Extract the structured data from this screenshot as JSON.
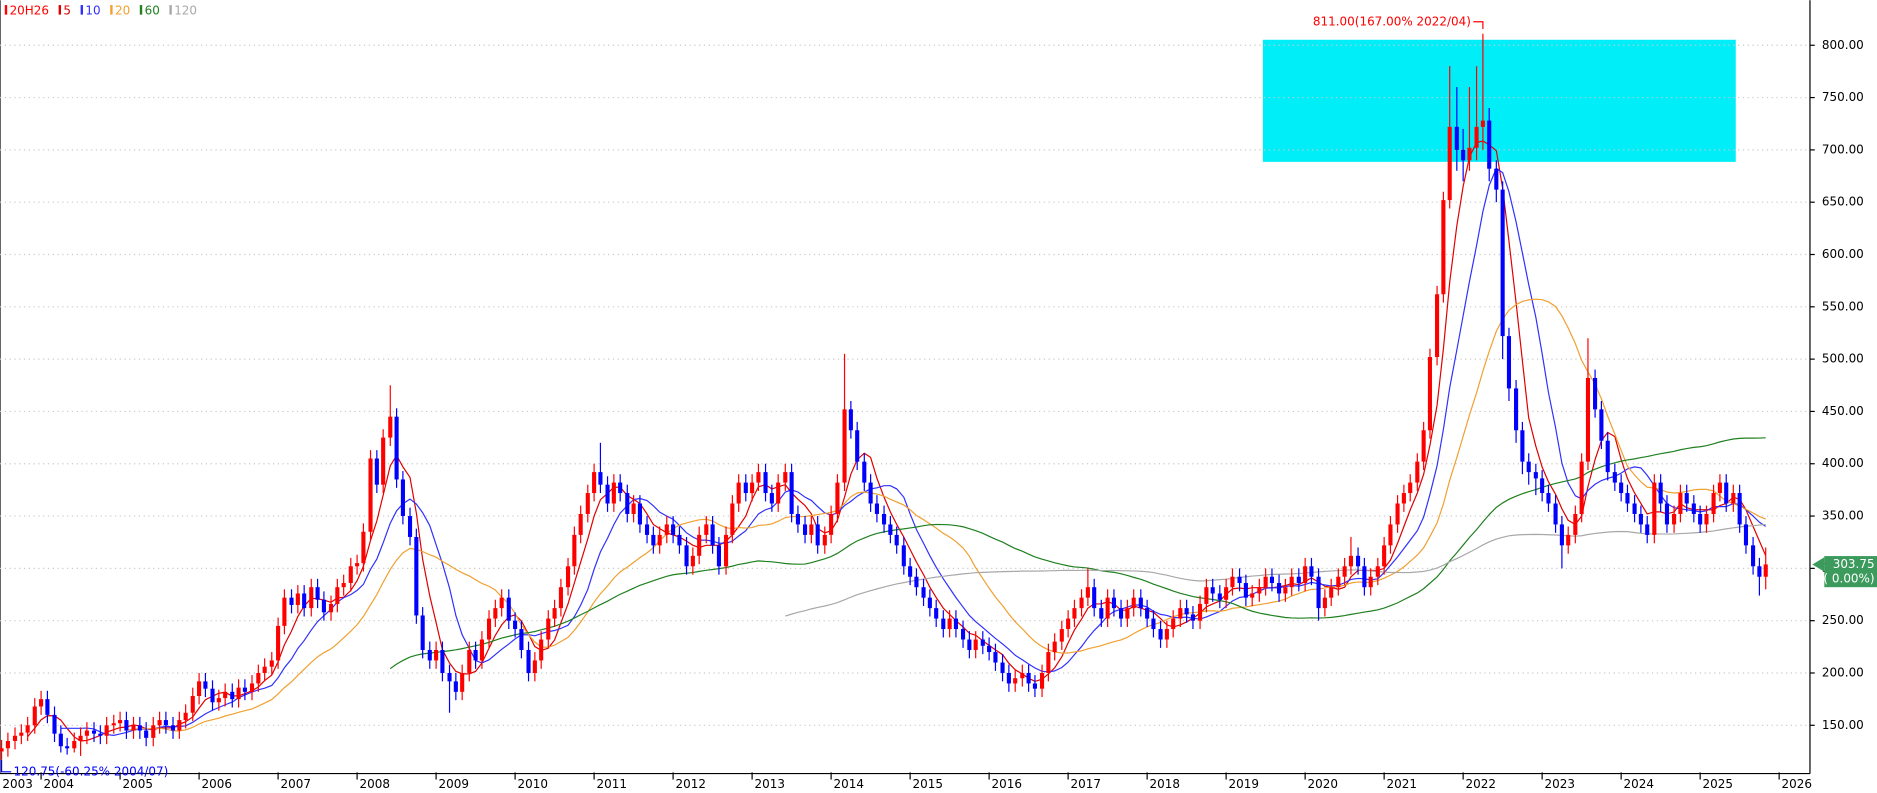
{
  "chart_data": {
    "type": "candlestick",
    "legend_title": "20H26",
    "x": [
      2003.5,
      2003.58,
      2003.67,
      2003.75,
      2003.83,
      2003.92,
      2004,
      2004.08,
      2004.17,
      2004.25,
      2004.33,
      2004.42,
      2004.5,
      2004.58,
      2004.67,
      2004.75,
      2004.83,
      2004.92,
      2005,
      2005.08,
      2005.17,
      2005.25,
      2005.33,
      2005.42,
      2005.5,
      2005.58,
      2005.67,
      2005.75,
      2005.83,
      2005.92,
      2006,
      2006.08,
      2006.17,
      2006.25,
      2006.33,
      2006.42,
      2006.5,
      2006.58,
      2006.67,
      2006.75,
      2006.83,
      2006.92,
      2007,
      2007.08,
      2007.17,
      2007.25,
      2007.33,
      2007.42,
      2007.5,
      2007.58,
      2007.67,
      2007.75,
      2007.83,
      2007.92,
      2008,
      2008.08,
      2008.17,
      2008.25,
      2008.33,
      2008.42,
      2008.5,
      2008.58,
      2008.67,
      2008.75,
      2008.83,
      2008.92,
      2009,
      2009.08,
      2009.17,
      2009.25,
      2009.33,
      2009.42,
      2009.5,
      2009.58,
      2009.67,
      2009.75,
      2009.83,
      2009.92,
      2010,
      2010.08,
      2010.17,
      2010.25,
      2010.33,
      2010.42,
      2010.5,
      2010.58,
      2010.67,
      2010.75,
      2010.83,
      2010.92,
      2011,
      2011.08,
      2011.17,
      2011.25,
      2011.33,
      2011.42,
      2011.5,
      2011.58,
      2011.67,
      2011.75,
      2011.83,
      2011.92,
      2012,
      2012.08,
      2012.17,
      2012.25,
      2012.33,
      2012.42,
      2012.5,
      2012.58,
      2012.67,
      2012.75,
      2012.83,
      2012.92,
      2013,
      2013.08,
      2013.17,
      2013.25,
      2013.33,
      2013.42,
      2013.5,
      2013.58,
      2013.67,
      2013.75,
      2013.83,
      2013.92,
      2014,
      2014.08,
      2014.17,
      2014.25,
      2014.33,
      2014.42,
      2014.5,
      2014.58,
      2014.67,
      2014.75,
      2014.83,
      2014.92,
      2015,
      2015.08,
      2015.17,
      2015.25,
      2015.33,
      2015.42,
      2015.5,
      2015.58,
      2015.67,
      2015.75,
      2015.83,
      2015.92,
      2016,
      2016.08,
      2016.17,
      2016.25,
      2016.33,
      2016.42,
      2016.5,
      2016.58,
      2016.67,
      2016.75,
      2016.83,
      2016.92,
      2017,
      2017.08,
      2017.17,
      2017.25,
      2017.33,
      2017.42,
      2017.5,
      2017.58,
      2017.67,
      2017.75,
      2017.83,
      2017.92,
      2018,
      2018.08,
      2018.17,
      2018.25,
      2018.33,
      2018.42,
      2018.5,
      2018.58,
      2018.67,
      2018.75,
      2018.83,
      2018.92,
      2019,
      2019.08,
      2019.17,
      2019.25,
      2019.33,
      2019.42,
      2019.5,
      2019.58,
      2019.67,
      2019.75,
      2019.83,
      2019.92,
      2020,
      2020.08,
      2020.17,
      2020.25,
      2020.33,
      2020.42,
      2020.5,
      2020.58,
      2020.67,
      2020.75,
      2020.83,
      2020.92,
      2021,
      2021.08,
      2021.17,
      2021.25,
      2021.33,
      2021.42,
      2021.5,
      2021.58,
      2021.67,
      2021.75,
      2021.83,
      2021.92,
      2022,
      2022.08,
      2022.17,
      2022.25,
      2022.33,
      2022.42,
      2022.5,
      2022.58,
      2022.67,
      2022.75,
      2022.83,
      2022.92,
      2023,
      2023.08,
      2023.17,
      2023.25,
      2023.33,
      2023.42,
      2023.5,
      2023.58,
      2023.67,
      2023.75,
      2023.83,
      2023.92,
      2024,
      2024.08,
      2024.17,
      2024.25,
      2024.33,
      2024.42,
      2024.5,
      2024.58,
      2024.67,
      2024.75,
      2024.83,
      2024.92,
      2025,
      2025.08,
      2025.17,
      2025.25,
      2025.33,
      2025.42,
      2025.5,
      2025.58,
      2025.67,
      2025.75,
      2025.83
    ],
    "open": [
      125,
      128,
      135,
      140,
      143,
      150,
      168,
      175,
      160,
      142,
      130,
      128,
      135,
      140,
      145,
      142,
      140,
      150,
      152,
      155,
      145,
      150,
      145,
      138,
      150,
      155,
      150,
      145,
      155,
      162,
      178,
      192,
      185,
      172,
      176,
      182,
      175,
      186,
      182,
      190,
      200,
      206,
      212,
      245,
      272,
      265,
      276,
      262,
      282,
      270,
      258,
      266,
      282,
      286,
      302,
      305,
      335,
      405,
      380,
      425,
      445,
      385,
      350,
      330,
      255,
      222,
      212,
      222,
      200,
      192,
      182,
      200,
      222,
      212,
      232,
      252,
      262,
      272,
      250,
      242,
      222,
      200,
      212,
      232,
      252,
      262,
      282,
      302,
      332,
      352,
      372,
      392,
      380,
      362,
      382,
      372,
      352,
      362,
      342,
      332,
      322,
      332,
      342,
      332,
      322,
      302,
      312,
      332,
      342,
      322,
      302,
      332,
      362,
      382,
      372,
      382,
      392,
      372,
      362,
      382,
      392,
      352,
      342,
      332,
      342,
      322,
      332,
      352,
      382,
      452,
      432,
      402,
      382,
      362,
      352,
      342,
      332,
      322,
      302,
      292,
      282,
      272,
      262,
      252,
      242,
      252,
      242,
      232,
      222,
      232,
      226,
      220,
      210,
      200,
      190,
      195,
      200,
      190,
      185,
      200,
      220,
      230,
      242,
      252,
      262,
      272,
      282,
      262,
      252,
      272,
      262,
      252,
      262,
      272,
      262,
      252,
      242,
      232,
      242,
      252,
      262,
      256,
      250,
      266,
      282,
      276,
      270,
      282,
      292,
      286,
      272,
      276,
      282,
      292,
      286,
      276,
      282,
      292,
      286,
      302,
      292,
      262,
      272,
      282,
      292,
      302,
      312,
      302,
      282,
      292,
      302,
      322,
      342,
      362,
      372,
      382,
      402,
      432,
      502,
      562,
      652,
      722,
      700,
      690,
      702,
      722,
      728,
      682,
      662,
      522,
      472,
      432,
      402,
      392,
      386,
      372,
      362,
      342,
      322,
      332,
      352,
      402,
      482,
      452,
      422,
      392,
      382,
      372,
      362,
      352,
      342,
      332,
      382,
      362,
      342,
      352,
      372,
      362,
      352,
      342,
      352,
      372,
      382,
      362,
      372,
      342,
      322,
      302,
      292
    ],
    "high": [
      136,
      143,
      148,
      151,
      158,
      176,
      183,
      183,
      168,
      150,
      138,
      143,
      148,
      153,
      153,
      150,
      158,
      160,
      163,
      163,
      158,
      158,
      153,
      158,
      163,
      163,
      158,
      163,
      170,
      186,
      200,
      200,
      193,
      184,
      190,
      190,
      194,
      194,
      198,
      208,
      214,
      220,
      253,
      280,
      280,
      284,
      284,
      290,
      290,
      278,
      274,
      290,
      294,
      310,
      313,
      343,
      413,
      413,
      433,
      475,
      453,
      393,
      358,
      338,
      263,
      230,
      230,
      230,
      208,
      200,
      208,
      230,
      230,
      240,
      260,
      270,
      280,
      280,
      258,
      250,
      230,
      220,
      240,
      260,
      270,
      290,
      310,
      340,
      360,
      380,
      400,
      420,
      388,
      390,
      390,
      380,
      370,
      370,
      350,
      340,
      340,
      350,
      350,
      340,
      330,
      320,
      340,
      350,
      350,
      330,
      340,
      370,
      390,
      390,
      390,
      400,
      400,
      380,
      390,
      400,
      400,
      360,
      350,
      350,
      350,
      340,
      360,
      390,
      505,
      460,
      440,
      410,
      390,
      370,
      360,
      350,
      340,
      330,
      310,
      300,
      290,
      280,
      270,
      260,
      260,
      260,
      250,
      240,
      240,
      240,
      234,
      228,
      218,
      208,
      203,
      208,
      208,
      198,
      208,
      228,
      238,
      250,
      260,
      270,
      280,
      300,
      290,
      270,
      280,
      280,
      270,
      270,
      280,
      280,
      270,
      260,
      250,
      250,
      260,
      270,
      270,
      264,
      274,
      290,
      290,
      284,
      290,
      300,
      300,
      294,
      284,
      290,
      300,
      300,
      294,
      290,
      300,
      300,
      310,
      310,
      300,
      280,
      290,
      300,
      310,
      330,
      320,
      310,
      300,
      310,
      330,
      350,
      370,
      380,
      390,
      410,
      440,
      510,
      570,
      660,
      780,
      760,
      720,
      760,
      780,
      811,
      740,
      690,
      670,
      530,
      480,
      440,
      410,
      400,
      394,
      380,
      370,
      350,
      340,
      360,
      410,
      520,
      490,
      460,
      430,
      400,
      390,
      380,
      370,
      360,
      350,
      390,
      390,
      370,
      360,
      380,
      380,
      370,
      360,
      360,
      380,
      390,
      390,
      380,
      380,
      350,
      330,
      310,
      320
    ],
    "low": [
      117,
      120,
      127,
      132,
      135,
      142,
      160,
      152,
      134,
      124,
      122,
      124,
      120.75,
      132,
      134,
      132,
      132,
      142,
      144,
      137,
      137,
      137,
      130,
      130,
      142,
      142,
      137,
      137,
      147,
      154,
      170,
      177,
      164,
      164,
      168,
      167,
      167,
      174,
      174,
      182,
      192,
      198,
      204,
      237,
      257,
      257,
      254,
      254,
      262,
      250,
      250,
      258,
      274,
      278,
      294,
      297,
      327,
      372,
      372,
      417,
      377,
      342,
      322,
      247,
      214,
      204,
      204,
      192,
      162,
      174,
      174,
      192,
      204,
      204,
      224,
      244,
      254,
      242,
      234,
      214,
      192,
      192,
      204,
      224,
      244,
      254,
      274,
      294,
      324,
      344,
      364,
      372,
      354,
      354,
      364,
      344,
      344,
      334,
      324,
      314,
      314,
      324,
      324,
      314,
      294,
      294,
      304,
      324,
      314,
      294,
      294,
      324,
      354,
      364,
      364,
      374,
      364,
      354,
      354,
      374,
      344,
      334,
      324,
      324,
      314,
      314,
      324,
      344,
      374,
      424,
      394,
      374,
      354,
      344,
      334,
      324,
      314,
      294,
      284,
      274,
      264,
      254,
      244,
      234,
      234,
      234,
      224,
      214,
      214,
      218,
      212,
      202,
      192,
      182,
      182,
      187,
      182,
      177,
      177,
      192,
      212,
      222,
      234,
      244,
      254,
      264,
      254,
      244,
      244,
      254,
      244,
      244,
      254,
      254,
      244,
      234,
      224,
      224,
      234,
      244,
      248,
      242,
      242,
      258,
      268,
      262,
      262,
      274,
      278,
      264,
      264,
      268,
      274,
      278,
      268,
      268,
      274,
      278,
      278,
      284,
      250,
      254,
      264,
      274,
      284,
      294,
      294,
      274,
      274,
      284,
      294,
      314,
      334,
      354,
      364,
      374,
      394,
      424,
      494,
      554,
      644,
      680,
      670,
      680,
      690,
      700,
      670,
      650,
      500,
      460,
      420,
      390,
      380,
      370,
      364,
      354,
      334,
      300,
      314,
      324,
      344,
      394,
      444,
      414,
      384,
      374,
      364,
      354,
      344,
      334,
      324,
      324,
      354,
      334,
      334,
      344,
      354,
      344,
      334,
      334,
      344,
      364,
      354,
      354,
      334,
      314,
      294,
      274,
      280
    ],
    "close": [
      128,
      135,
      140,
      143,
      150,
      168,
      175,
      160,
      142,
      130,
      128,
      135,
      140,
      145,
      142,
      140,
      150,
      152,
      155,
      145,
      150,
      145,
      138,
      150,
      155,
      150,
      145,
      155,
      162,
      178,
      192,
      185,
      172,
      176,
      182,
      175,
      186,
      182,
      190,
      200,
      206,
      212,
      245,
      272,
      265,
      276,
      262,
      282,
      270,
      258,
      266,
      282,
      286,
      302,
      305,
      335,
      405,
      380,
      425,
      445,
      385,
      350,
      330,
      255,
      222,
      212,
      222,
      200,
      192,
      182,
      200,
      222,
      212,
      232,
      252,
      262,
      272,
      250,
      242,
      222,
      200,
      212,
      232,
      252,
      262,
      282,
      302,
      332,
      352,
      372,
      392,
      380,
      362,
      382,
      372,
      352,
      362,
      342,
      332,
      322,
      332,
      342,
      332,
      322,
      302,
      312,
      332,
      342,
      322,
      302,
      332,
      362,
      382,
      372,
      382,
      392,
      372,
      362,
      382,
      392,
      352,
      342,
      332,
      342,
      322,
      332,
      352,
      382,
      452,
      432,
      402,
      382,
      362,
      352,
      342,
      332,
      322,
      302,
      292,
      282,
      272,
      262,
      252,
      242,
      252,
      242,
      232,
      222,
      232,
      226,
      220,
      210,
      200,
      190,
      195,
      200,
      190,
      185,
      200,
      220,
      230,
      242,
      252,
      262,
      272,
      282,
      262,
      252,
      272,
      262,
      252,
      262,
      272,
      262,
      252,
      242,
      232,
      242,
      252,
      262,
      256,
      250,
      266,
      282,
      276,
      270,
      282,
      292,
      286,
      272,
      276,
      282,
      292,
      286,
      276,
      282,
      292,
      286,
      302,
      292,
      262,
      272,
      282,
      292,
      302,
      312,
      302,
      282,
      292,
      302,
      322,
      342,
      362,
      372,
      382,
      402,
      432,
      502,
      562,
      652,
      722,
      700,
      690,
      702,
      722,
      728,
      682,
      662,
      522,
      472,
      432,
      402,
      392,
      386,
      372,
      362,
      342,
      322,
      332,
      352,
      402,
      482,
      452,
      422,
      392,
      382,
      372,
      362,
      352,
      342,
      332,
      382,
      362,
      342,
      352,
      372,
      362,
      352,
      342,
      352,
      372,
      382,
      362,
      372,
      342,
      322,
      302,
      292,
      303.75
    ],
    "up_color": "#ff0000",
    "down_color": "#0000ff",
    "moving_averages": [
      {
        "name": "5",
        "color": "#e00000"
      },
      {
        "name": "10",
        "color": "#3030ff"
      },
      {
        "name": "20",
        "color": "#f0a030"
      },
      {
        "name": "60",
        "color": "#208020"
      },
      {
        "name": "120",
        "color": "#a8a8a8"
      }
    ],
    "xlim": [
      2003.48,
      2026.39
    ],
    "xticks": [
      2003,
      2004,
      2005,
      2006,
      2007,
      2008,
      2009,
      2010,
      2011,
      2012,
      2013,
      2014,
      2015,
      2016,
      2017,
      2018,
      2019,
      2020,
      2021,
      2022,
      2023,
      2024,
      2025,
      2026
    ],
    "ylim": [
      105,
      843
    ],
    "yticks": [
      {
        "value": 150,
        "label": "150.00"
      },
      {
        "value": 200,
        "label": "200.00"
      },
      {
        "value": 250,
        "label": "250.00"
      },
      {
        "value": 300,
        "label": "300.00"
      },
      {
        "value": 350,
        "label": "350.00"
      },
      {
        "value": 400,
        "label": "400.00"
      },
      {
        "value": 450,
        "label": "450.00"
      },
      {
        "value": 500,
        "label": "500.00"
      },
      {
        "value": 550,
        "label": "550.00"
      },
      {
        "value": 600,
        "label": "600.00"
      },
      {
        "value": 650,
        "label": "650.00"
      },
      {
        "value": 700,
        "label": "700.00"
      },
      {
        "value": 750,
        "label": "750.00"
      },
      {
        "value": 800,
        "label": "800.00"
      }
    ],
    "grid": true,
    "high_annotation": {
      "text": "811.00(167.00% 2022/04)",
      "color": "#ff0000"
    },
    "low_annotation": {
      "text": "120.75(-60.25% 2004/07)",
      "color": "#0000ff"
    },
    "last_price": {
      "label": "303.75",
      "change": "( 0.00%)",
      "color": "#3c9a5c"
    }
  }
}
